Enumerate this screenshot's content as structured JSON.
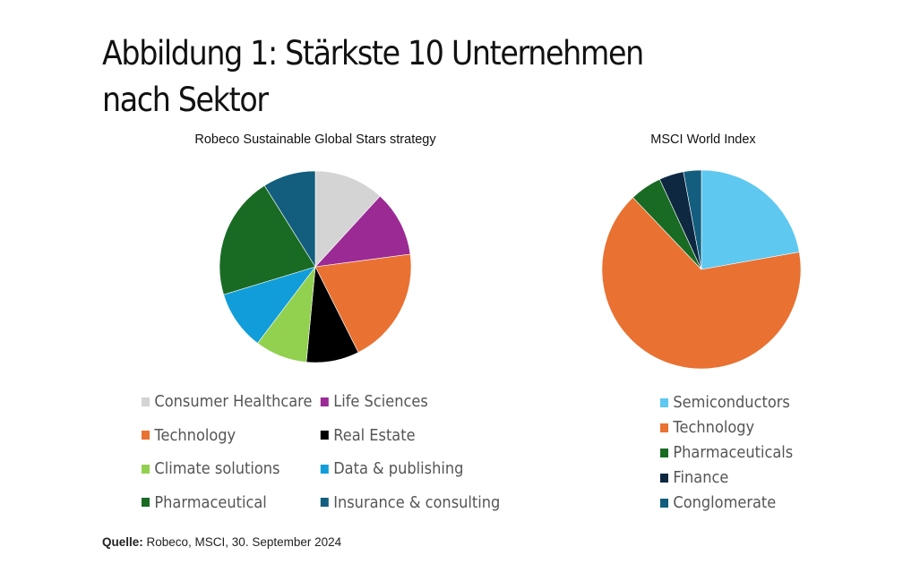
{
  "title": "Abbildung 1: Stärkste 10 Unternehmen nach Sektor",
  "source": {
    "label": "Quelle:",
    "text": " Robeco, MSCI, 30. September 2024"
  },
  "chart_data": [
    {
      "type": "pie",
      "title": "Robeco Sustainable Global Stars strategy",
      "legend_position": "bottom",
      "slices": [
        {
          "label": "Consumer Healthcare",
          "value": 11.8,
          "color": "#d4d4d4"
        },
        {
          "label": "Life Sciences",
          "value": 11.1,
          "color": "#9b2a95"
        },
        {
          "label": "Technology",
          "value": 19.7,
          "color": "#e97132"
        },
        {
          "label": "Real Estate",
          "value": 8.9,
          "color": "#000000"
        },
        {
          "label": "Climate solutions",
          "value": 8.8,
          "color": "#92d050"
        },
        {
          "label": "Data & publishing",
          "value": 10.0,
          "color": "#109dd9"
        },
        {
          "label": "Pharmaceutical",
          "value": 20.8,
          "color": "#196b24"
        },
        {
          "label": "Insurance & consulting",
          "value": 8.9,
          "color": "#135e7e"
        }
      ]
    },
    {
      "type": "pie",
      "title": "MSCI World Index",
      "legend_position": "bottom",
      "slices": [
        {
          "label": "Semiconductors",
          "value": 22.2,
          "color": "#5ec8f0"
        },
        {
          "label": "Technology",
          "value": 65.7,
          "color": "#e97132"
        },
        {
          "label": "Pharmaceuticals",
          "value": 5.2,
          "color": "#196b24"
        },
        {
          "label": "Finance",
          "value": 4.0,
          "color": "#0e2841"
        },
        {
          "label": "Conglomerate",
          "value": 2.9,
          "color": "#135e7e"
        }
      ]
    }
  ]
}
